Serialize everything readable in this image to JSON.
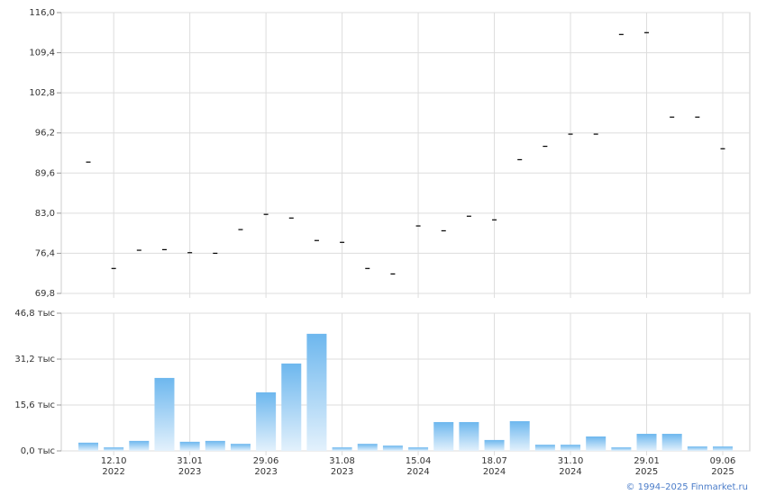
{
  "chart_data": [
    {
      "type": "dash",
      "color": "#000000",
      "grid": true,
      "ylim": [
        69.8,
        116.0
      ],
      "yticks": [
        {
          "value": 69.8,
          "label": "69,8"
        },
        {
          "value": 76.4,
          "label": "76,4"
        },
        {
          "value": 83.0,
          "label": "83,0"
        },
        {
          "value": 89.6,
          "label": "89,6"
        },
        {
          "value": 96.2,
          "label": "96,2"
        },
        {
          "value": 102.8,
          "label": "102,8"
        },
        {
          "value": 109.4,
          "label": "109,4"
        },
        {
          "value": 116.0,
          "label": "116,0"
        }
      ],
      "values": [
        91.4,
        73.9,
        76.9,
        77.0,
        76.5,
        76.4,
        80.3,
        82.8,
        82.2,
        78.5,
        78.2,
        73.9,
        73.0,
        80.9,
        80.1,
        82.5,
        81.9,
        91.8,
        94.0,
        96.0,
        96.0,
        112.4,
        112.7,
        98.8,
        98.8,
        93.6
      ]
    },
    {
      "type": "bar",
      "color": "#6db7ee",
      "grid": true,
      "ylim": [
        0,
        46.8
      ],
      "yticks": [
        {
          "value": 0,
          "label": "0,0 тыс"
        },
        {
          "value": 15.6,
          "label": "15,6 тыс"
        },
        {
          "value": 31.2,
          "label": "31,2 тыс"
        },
        {
          "value": 46.8,
          "label": "46,8 тыс"
        }
      ],
      "categories": [
        null,
        "12.10\n2022",
        null,
        null,
        "31.01\n2023",
        null,
        null,
        "29.06\n2023",
        null,
        null,
        "31.08\n2023",
        null,
        null,
        "15.04\n2024",
        null,
        null,
        "18.07\n2024",
        null,
        null,
        "31.10\n2024",
        null,
        null,
        "29.01\n2025",
        null,
        null,
        "09.06\n2025"
      ],
      "values": [
        2.8,
        1.2,
        3.4,
        24.8,
        3.1,
        3.4,
        2.4,
        19.9,
        29.7,
        39.8,
        1.2,
        2.4,
        1.8,
        1.2,
        9.8,
        9.8,
        3.7,
        10.1,
        2.1,
        2.1,
        4.9,
        1.2,
        5.8,
        5.8,
        1.5,
        1.5
      ]
    }
  ],
  "footer": "© 1994–2025 Finmarket.ru"
}
